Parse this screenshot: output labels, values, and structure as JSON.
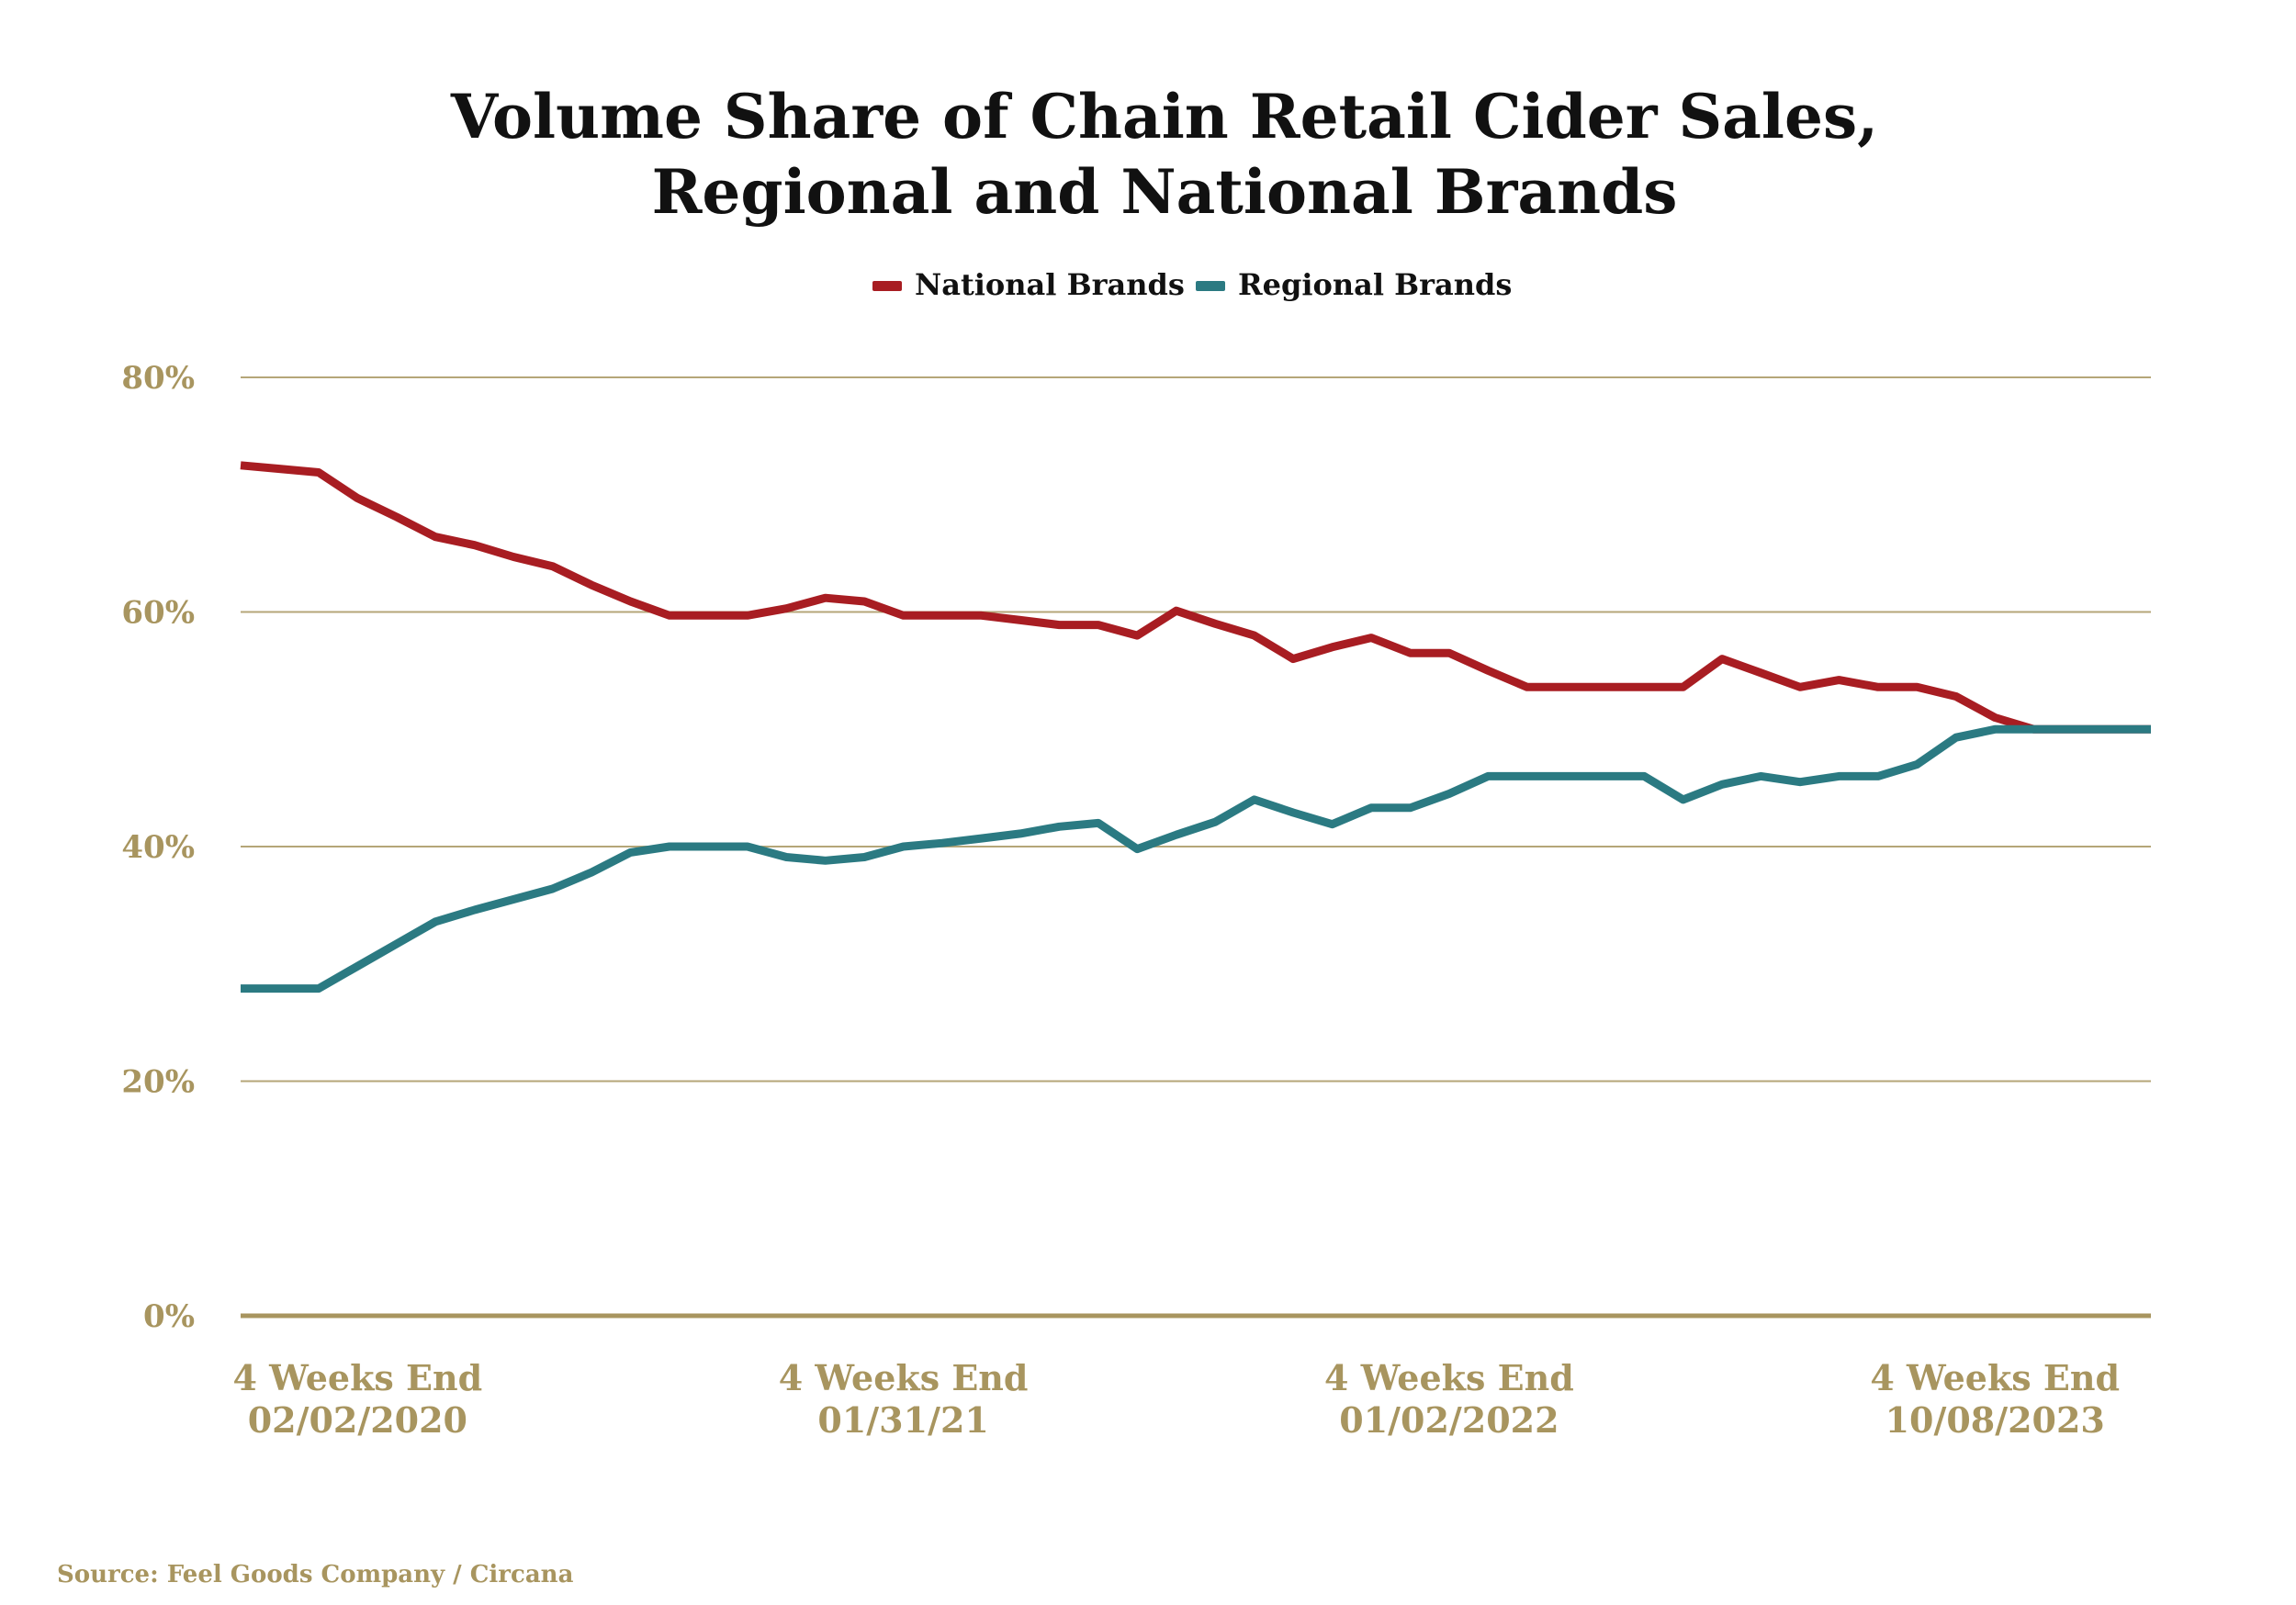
{
  "chart_data": {
    "type": "line",
    "title_lines": [
      "Volume Share of Chain Retail Cider Sales,",
      "Regional and National Brands"
    ],
    "ylim": [
      0,
      80
    ],
    "y_ticks": [
      0,
      20,
      40,
      60,
      80
    ],
    "y_tick_labels": [
      "0%",
      "20%",
      "40%",
      "60%",
      "80%"
    ],
    "grid": true,
    "legend_position": "top-center",
    "x_tick_labels": [
      {
        "index": 3,
        "line1": "4 Weeks End",
        "line2": "02/02/2020"
      },
      {
        "index": 17,
        "line1": "4 Weeks End",
        "line2": "01/31/21"
      },
      {
        "index": 31,
        "line1": "4 Weeks End",
        "line2": "01/02/2022"
      },
      {
        "index": 45,
        "line1": "4 Weeks End",
        "line2": "10/08/2023"
      }
    ],
    "series": [
      {
        "name": "National Brands",
        "color": "#a81d22",
        "values": [
          72.5,
          72.2,
          71.9,
          69.7,
          68.1,
          66.4,
          65.7,
          64.7,
          63.9,
          62.3,
          60.9,
          59.7,
          59.7,
          59.7,
          60.3,
          61.2,
          60.9,
          59.7,
          59.7,
          59.7,
          59.3,
          58.9,
          58.9,
          58.0,
          60.1,
          59.0,
          58.0,
          56.0,
          57.0,
          57.8,
          56.5,
          56.5,
          55.0,
          53.6,
          53.6,
          53.6,
          53.6,
          53.6,
          56.0,
          54.8,
          53.6,
          54.2,
          53.6,
          53.6,
          52.8,
          51.0,
          50.0,
          50.0,
          50.0,
          50.0
        ]
      },
      {
        "name": "Regional Brands",
        "color": "#2b7a82",
        "values": [
          27.9,
          27.9,
          27.9,
          29.8,
          31.7,
          33.6,
          34.6,
          35.5,
          36.4,
          37.8,
          39.5,
          40.0,
          40.0,
          40.0,
          39.1,
          38.8,
          39.1,
          40.0,
          40.3,
          40.7,
          41.1,
          41.7,
          42.0,
          39.8,
          41.0,
          42.1,
          44.0,
          42.9,
          41.9,
          43.3,
          43.3,
          44.5,
          46.0,
          46.0,
          46.0,
          46.0,
          46.0,
          44.0,
          45.3,
          46.0,
          45.5,
          46.0,
          46.0,
          47.0,
          49.3,
          50.0,
          50.0,
          50.0,
          50.0,
          50.0
        ]
      }
    ],
    "source": "Source: Feel Goods Company / Circana"
  },
  "colors": {
    "national": "#a81d22",
    "regional": "#2b7a82",
    "gold": "#a8955f",
    "grid": "#b5a678",
    "title": "#111111"
  }
}
